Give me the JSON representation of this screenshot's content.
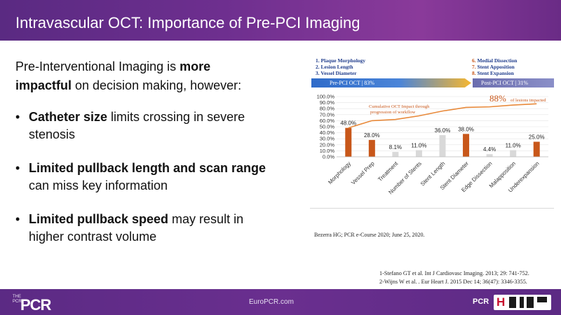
{
  "header": {
    "title": "Intravascular OCT: Importance of Pre-PCI Imaging"
  },
  "bullets": {
    "intro_lead": "Pre-Interventional Imaging is ",
    "intro_bold": "more impactful",
    "intro_tail": " on decision making, however:",
    "items": [
      {
        "bold": "Catheter size",
        "text": " limits crossing in severe stenosis"
      },
      {
        "bold": "Limited pullback length and scan range",
        "text": " can miss key information"
      },
      {
        "bold": "Limited pullback speed",
        "text": " may result in higher contrast volume"
      }
    ]
  },
  "figure": {
    "pre_list": [
      "Plaque Morphology",
      "Lesion Length",
      "Vessel Diameter"
    ],
    "pre_numbers": [
      "1.",
      "2.",
      "3."
    ],
    "post_list": [
      "Medial Dissection",
      "Stent Apposition",
      "Stent Expansion"
    ],
    "post_numbers": [
      "6.",
      "7.",
      "8."
    ],
    "pre_bar": "Pre-PCI OCT | 83%",
    "post_bar": "Post-PCI OCT | 31%",
    "source": "Bezerra HG; PCR e-Course 2020; June 25, 2020."
  },
  "chart_data": {
    "type": "bar",
    "categories": [
      "Morphology",
      "Vessel Prep",
      "Treatment",
      "Number of Stents",
      "Stent Length",
      "Stent Diameter",
      "Edge Dissection",
      "Malapposition",
      "Underexpansion"
    ],
    "values": [
      48.0,
      28.0,
      8.1,
      11.0,
      36.0,
      38.0,
      4.4,
      11.0,
      25.0
    ],
    "value_labels": [
      "48.0%",
      "28.0%",
      "8.1%",
      "11.0%",
      "36.0%",
      "38.0%",
      "4.4%",
      "11.0%",
      "25.0%"
    ],
    "bar_colors": [
      "#c8571a",
      "#c8571a",
      "#d9d9d9",
      "#d9d9d9",
      "#d9d9d9",
      "#c8571a",
      "#d9d9d9",
      "#d9d9d9",
      "#c8571a"
    ],
    "yticks": [
      "0.0%",
      "10.0%",
      "20.0%",
      "30.0%",
      "40.0%",
      "50.0%",
      "60.0%",
      "70.0%",
      "80.0%",
      "90.0%",
      "100.0%"
    ],
    "ylim": [
      0,
      100
    ],
    "line": {
      "name": "Cumulative OCT Impact through progression of workflow",
      "values": [
        48,
        60,
        62,
        68,
        76,
        82,
        83,
        86,
        88
      ],
      "color": "#e8893a"
    },
    "annotation_value": "88%",
    "annotation_text": "of lesions impacted",
    "line_label": "Cumulative OCT Impact through progression of workflow",
    "grid": true
  },
  "references": [
    "1-Stefano GT et al. Int J Cardiovasc Imaging. 2013; 29: 741-752.",
    "2-Wijns W et al. . Eur Heart J. 2015 Dec 14; 36(47): 3346-3355."
  ],
  "footer": {
    "site": "EuroPCR.com",
    "logo_small": "THE PCR",
    "logo": "PCR",
    "badge_pcr": "PCR",
    "badge_mark": "H"
  },
  "colors": {
    "header": "#6a2b86",
    "accent_orange": "#c8571a",
    "pre_blue": "#2f6bc9",
    "post_purple": "#7b7fbe"
  }
}
